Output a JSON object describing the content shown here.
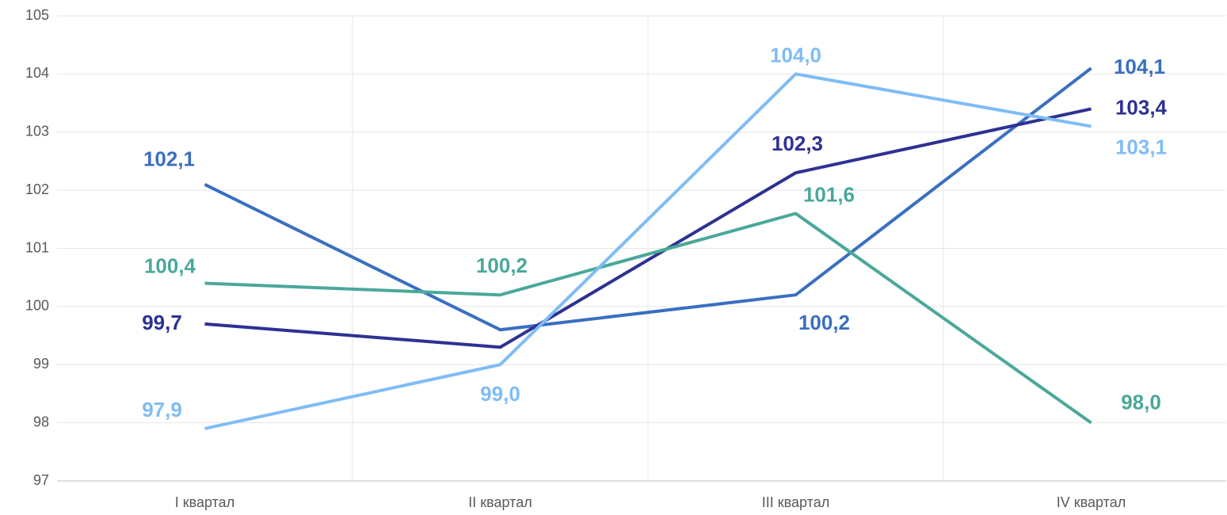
{
  "chart_data": {
    "type": "line",
    "categories": [
      "I квартал",
      "II квартал",
      "III квартал",
      "IV квартал"
    ],
    "series": [
      {
        "color": "#3a6fc0",
        "values": [
          102.1,
          99.6,
          100.2,
          104.1
        ],
        "value_labels": [
          "102,1",
          null,
          "100,2",
          "104,1"
        ]
      },
      {
        "color": "#2e3192",
        "values": [
          99.7,
          99.3,
          102.3,
          103.4
        ],
        "value_labels": [
          "99,7",
          null,
          "102,3",
          "103,4"
        ]
      },
      {
        "color": "#4aa89a",
        "values": [
          100.4,
          100.2,
          101.6,
          98.0
        ],
        "value_labels": [
          "100,4",
          "100,2",
          "101,6",
          "98,0"
        ]
      },
      {
        "color": "#7fbcf5",
        "values": [
          97.9,
          99.0,
          104.0,
          103.1
        ],
        "value_labels": [
          "97,9",
          "99,0",
          "104,0",
          "103,1"
        ]
      }
    ],
    "ylim": [
      97,
      105
    ],
    "yticks": [
      97,
      98,
      99,
      100,
      101,
      102,
      103,
      104,
      105
    ],
    "grid": true
  }
}
